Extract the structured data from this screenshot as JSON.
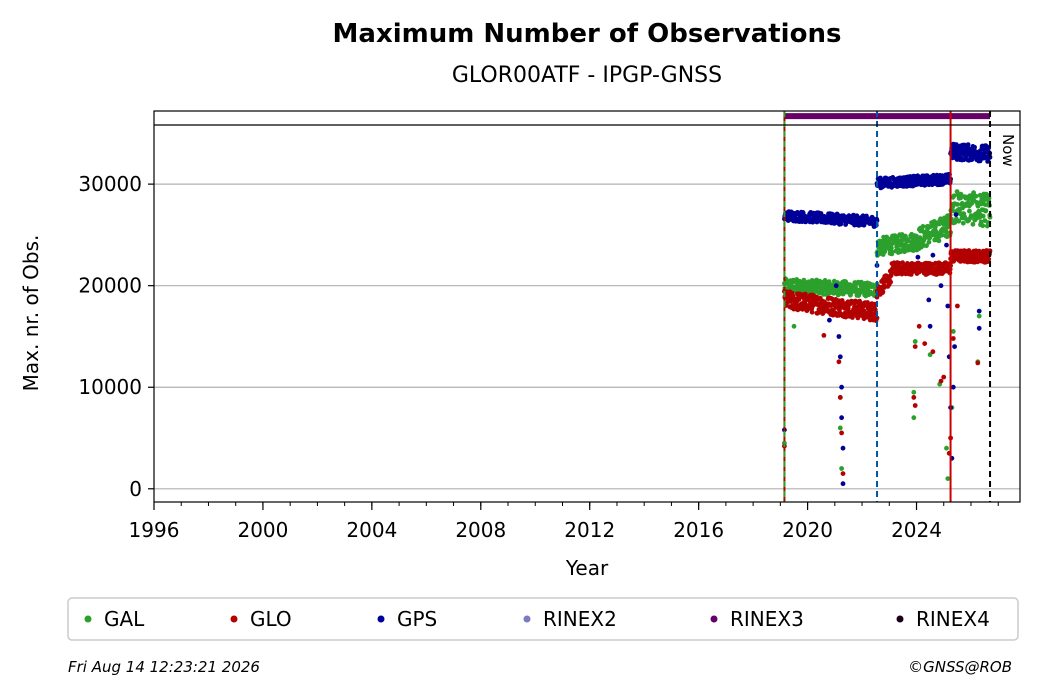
{
  "chart_data": {
    "type": "scatter",
    "title": "Maximum Number of Observations",
    "subtitle": "GLOR00ATF - IPGP-GNSS",
    "xlabel": "Year",
    "ylabel": "Max. nr. of Obs.",
    "xlim": [
      1996,
      2027.8
    ],
    "ylim": [
      -1300,
      37200
    ],
    "x_ticks": [
      "1996",
      "2000",
      "2004",
      "2008",
      "2012",
      "2016",
      "2020",
      "2024"
    ],
    "y_ticks": [
      "0",
      "10000",
      "20000",
      "30000"
    ],
    "grid": "horizontal",
    "legend_position": "below",
    "now_label": "Now",
    "series": [
      {
        "name": "GAL",
        "color": "#2ca02c",
        "segments": [
          {
            "x": [
              2019.15,
              2022.55
            ],
            "y": [
              20000,
              19600
            ],
            "jitter": 700
          },
          {
            "x": [
              2022.55,
              2024.05
            ],
            "y": [
              23800,
              24400
            ],
            "jitter": 900
          },
          {
            "x": [
              2024.05,
              2025.25
            ],
            "y": [
              24600,
              26000
            ],
            "jitter": 1100
          },
          {
            "x": [
              2025.25,
              2026.7
            ],
            "y": [
              27800,
              27400
            ],
            "jitter": 1600
          }
        ],
        "outliers": [
          [
            2019.15,
            4500
          ],
          [
            2019.5,
            16000
          ],
          [
            2021.2,
            9000
          ],
          [
            2021.2,
            6000
          ],
          [
            2021.25,
            2000
          ],
          [
            2023.9,
            7000
          ],
          [
            2023.95,
            14500
          ],
          [
            2023.9,
            9500
          ],
          [
            2024.5,
            13200
          ],
          [
            2024.85,
            10300
          ],
          [
            2025.1,
            4000
          ],
          [
            2025.15,
            1000
          ],
          [
            2025.3,
            8000
          ],
          [
            2025.35,
            15500
          ],
          [
            2026.25,
            12500
          ],
          [
            2026.3,
            17000
          ],
          [
            2026.35,
            26000
          ]
        ]
      },
      {
        "name": "GLO",
        "color": "#b30000",
        "segments": [
          {
            "x": [
              2019.15,
              2022.55
            ],
            "y": [
              18600,
              17400
            ],
            "jitter": 900
          },
          {
            "x": [
              2022.55,
              2023.1
            ],
            "y": [
              19400,
              21000
            ],
            "jitter": 700
          },
          {
            "x": [
              2023.1,
              2025.25
            ],
            "y": [
              21700,
              21700
            ],
            "jitter": 600
          },
          {
            "x": [
              2025.25,
              2026.7
            ],
            "y": [
              22900,
              22900
            ],
            "jitter": 600
          }
        ],
        "outliers": [
          [
            2019.15,
            4200
          ],
          [
            2020.6,
            15100
          ],
          [
            2021.15,
            12500
          ],
          [
            2021.2,
            9000
          ],
          [
            2021.25,
            5500
          ],
          [
            2021.3,
            1500
          ],
          [
            2023.9,
            9000
          ],
          [
            2023.95,
            8200
          ],
          [
            2023.95,
            14000
          ],
          [
            2024.1,
            16000
          ],
          [
            2024.3,
            14300
          ],
          [
            2024.6,
            13500
          ],
          [
            2024.9,
            10600
          ],
          [
            2025.0,
            11000
          ],
          [
            2025.2,
            3500
          ],
          [
            2025.25,
            5000
          ],
          [
            2025.35,
            14800
          ],
          [
            2025.5,
            18000
          ],
          [
            2026.25,
            12400
          ]
        ]
      },
      {
        "name": "GPS",
        "color": "#000099",
        "segments": [
          {
            "x": [
              2019.15,
              2022.55
            ],
            "y": [
              26900,
              26300
            ],
            "jitter": 500
          },
          {
            "x": [
              2022.55,
              2025.25
            ],
            "y": [
              30100,
              30500
            ],
            "jitter": 500
          },
          {
            "x": [
              2025.25,
              2026.7
            ],
            "y": [
              33200,
              33000
            ],
            "jitter": 800
          }
        ],
        "outliers": [
          [
            2019.15,
            5800
          ],
          [
            2020.8,
            16600
          ],
          [
            2021.05,
            20000
          ],
          [
            2021.15,
            15000
          ],
          [
            2021.2,
            13000
          ],
          [
            2021.25,
            10000
          ],
          [
            2021.25,
            7000
          ],
          [
            2021.3,
            4000
          ],
          [
            2021.3,
            500
          ],
          [
            2022.55,
            22000
          ],
          [
            2024.05,
            22800
          ],
          [
            2024.45,
            18600
          ],
          [
            2024.5,
            16000
          ],
          [
            2024.6,
            23000
          ],
          [
            2024.9,
            20000
          ],
          [
            2025.1,
            24000
          ],
          [
            2025.15,
            18000
          ],
          [
            2025.2,
            13000
          ],
          [
            2025.25,
            8000
          ],
          [
            2025.3,
            3000
          ],
          [
            2025.35,
            10000
          ],
          [
            2025.4,
            14000
          ],
          [
            2025.45,
            27000
          ],
          [
            2026.3,
            17500
          ],
          [
            2026.3,
            15800
          ]
        ]
      },
      {
        "name": "RINEX2",
        "color": "#7b7bbf",
        "segments": [],
        "outliers": []
      },
      {
        "name": "RINEX3",
        "color": "#660066",
        "segments": [],
        "outliers": [],
        "band": {
          "x": [
            2019.15,
            2026.7
          ],
          "y": 36700
        }
      },
      {
        "name": "RINEX4",
        "color": "#1a001a",
        "segments": [],
        "outliers": []
      }
    ],
    "vertical_lines": [
      {
        "x": 2019.15,
        "color": "#b30000",
        "style": "solid"
      },
      {
        "x": 2019.15,
        "color": "#2ca02c",
        "style": "dashed"
      },
      {
        "x": 2022.55,
        "color": "#0055aa",
        "style": "dashed"
      },
      {
        "x": 2025.25,
        "color": "#cc0000",
        "style": "solid"
      },
      {
        "x": 2026.7,
        "color": "#000000",
        "style": "dashed"
      }
    ]
  },
  "footer": {
    "timestamp": "Fri Aug 14 12:23:21 2026",
    "copyright": "©GNSS@ROB"
  }
}
